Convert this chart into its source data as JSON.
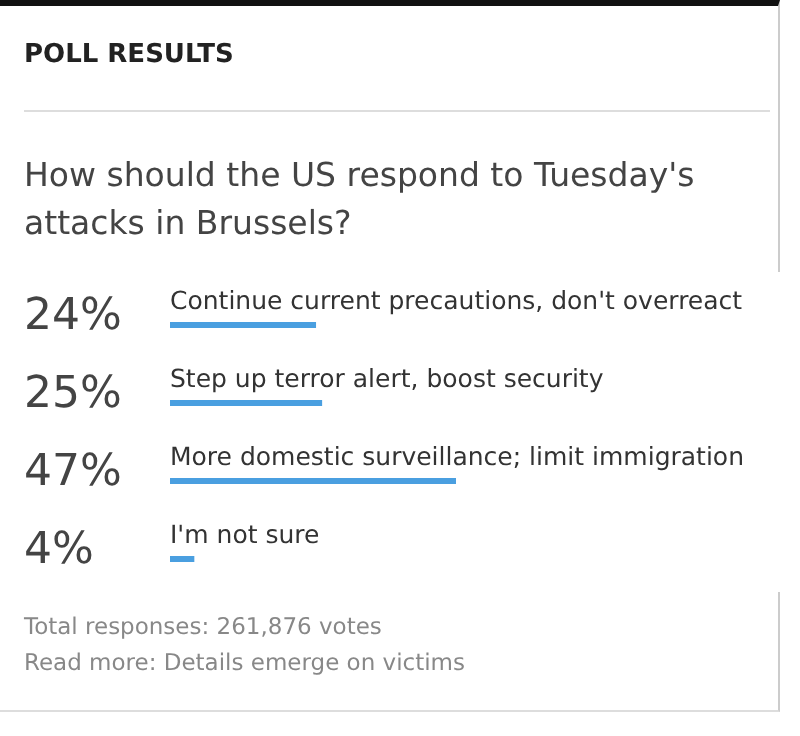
{
  "chart_data": {
    "type": "bar",
    "orientation": "horizontal",
    "title": "POLL RESULTS",
    "subtitle": "How should the US respond to Tuesday's attacks in Brussels?",
    "categories": [
      "Continue current precautions, don't overreact",
      "Step up terror alert, boost security",
      "More domestic surveillance; limit immigration",
      "I'm not sure"
    ],
    "values": [
      24,
      25,
      47,
      4
    ],
    "value_labels": [
      "24%",
      "25%",
      "47%",
      "4%"
    ],
    "color": "#4a9fe0",
    "annotations": [
      "Total responses: 261,876 votes",
      "Read more: Details emerge on victims"
    ]
  }
}
